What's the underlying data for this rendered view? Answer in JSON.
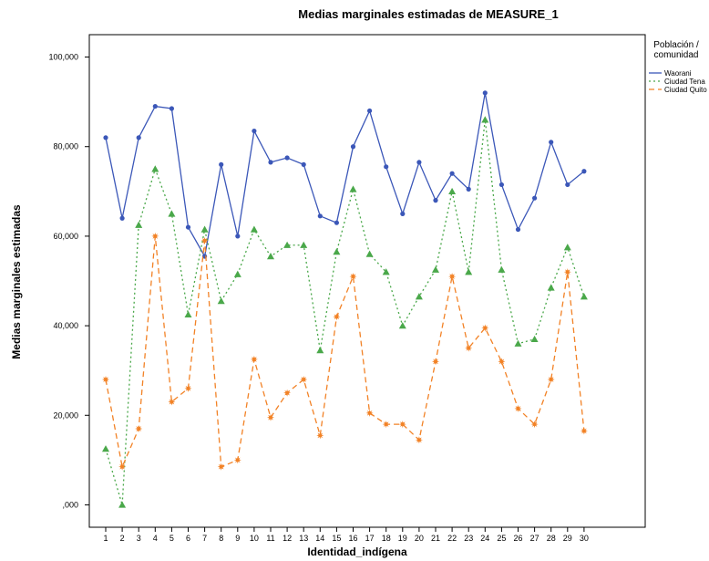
{
  "chart_data": {
    "type": "line",
    "title": "Medias marginales estimadas de MEASURE_1",
    "xlabel": "Identidad_indígena",
    "ylabel": "Medias marginales estimadas",
    "x": [
      1,
      2,
      3,
      4,
      5,
      6,
      7,
      8,
      9,
      10,
      11,
      12,
      13,
      14,
      15,
      16,
      17,
      18,
      19,
      20,
      21,
      22,
      23,
      24,
      25,
      26,
      27,
      28,
      29,
      30
    ],
    "x_tick_labels": [
      "1",
      "2",
      "3",
      "4",
      "5",
      "6",
      "7",
      "8",
      "9",
      "10",
      "11",
      "12",
      "13",
      "14",
      "15",
      "16",
      "17",
      "18",
      "19",
      "20",
      "21",
      "22",
      "23",
      "24",
      "25",
      "26",
      "27",
      "28",
      "29",
      "30"
    ],
    "ylim": [
      -5,
      105
    ],
    "y_ticks": [
      0,
      20,
      40,
      60,
      80,
      100
    ],
    "y_tick_labels": [
      ",000",
      "20,000",
      "40,000",
      "60,000",
      "80,000",
      "100,000"
    ],
    "grid": false,
    "legend": {
      "title": "Población / comunidad",
      "placement": "right"
    },
    "series": [
      {
        "name": "Waorani",
        "color": "#3b57b8",
        "style": "solid",
        "marker": "circle",
        "values": [
          82,
          64,
          82,
          89,
          88.5,
          62,
          55.5,
          76,
          60,
          83.5,
          76.5,
          77.5,
          76,
          64.5,
          63,
          80,
          88,
          75.5,
          65,
          76.5,
          68,
          74,
          70.5,
          92,
          71.5,
          61.5,
          68.5,
          81,
          71.5,
          74.5
        ]
      },
      {
        "name": "Ciudad Tena",
        "color": "#4aa84a",
        "style": "dotted",
        "marker": "triangle",
        "values": [
          12.5,
          0,
          62.5,
          75,
          65,
          42.5,
          61.5,
          45.5,
          51.5,
          61.5,
          55.5,
          58,
          58,
          34.5,
          56.5,
          70.5,
          56,
          52,
          40,
          46.5,
          52.5,
          70,
          52,
          86,
          52.5,
          36,
          37,
          48.5,
          57.5,
          46.5
        ]
      },
      {
        "name": "Ciudad Quito",
        "color": "#f28226",
        "style": "dashed",
        "marker": "star",
        "values": [
          28,
          8.5,
          17,
          60,
          23,
          26,
          59,
          8.5,
          10,
          32.5,
          19.5,
          25,
          28,
          15.5,
          42,
          51,
          20.5,
          18,
          18,
          14.5,
          32,
          51,
          35,
          39.5,
          32,
          21.5,
          18,
          28,
          52,
          16.5
        ]
      }
    ]
  }
}
